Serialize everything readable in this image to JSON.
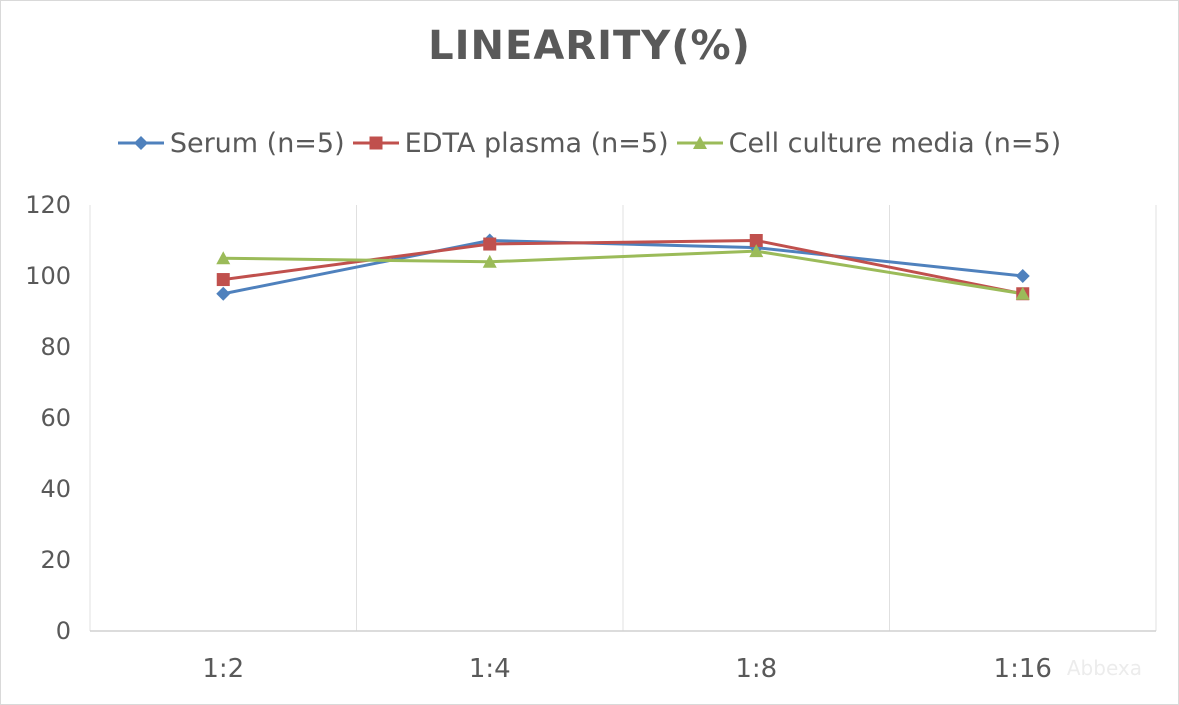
{
  "chart_data": {
    "type": "line",
    "title": "LINEARITY(%)",
    "categories": [
      "1:2",
      "1:4",
      "1:8",
      "1:16"
    ],
    "ylim": [
      0,
      120
    ],
    "yticks": [
      0,
      20,
      40,
      60,
      80,
      100,
      120
    ],
    "grid": "vertical",
    "legend_position": "top",
    "series": [
      {
        "name": "Serum (n=5)",
        "values": [
          95,
          110,
          108,
          100
        ],
        "color": "#4f81bd",
        "marker": "diamond"
      },
      {
        "name": "EDTA plasma (n=5)",
        "values": [
          99,
          109,
          110,
          95
        ],
        "color": "#c0504d",
        "marker": "square"
      },
      {
        "name": "Cell culture media (n=5)",
        "values": [
          105,
          104,
          107,
          95
        ],
        "color": "#9bbb59",
        "marker": "triangle"
      }
    ]
  },
  "watermark": "Abbexa"
}
